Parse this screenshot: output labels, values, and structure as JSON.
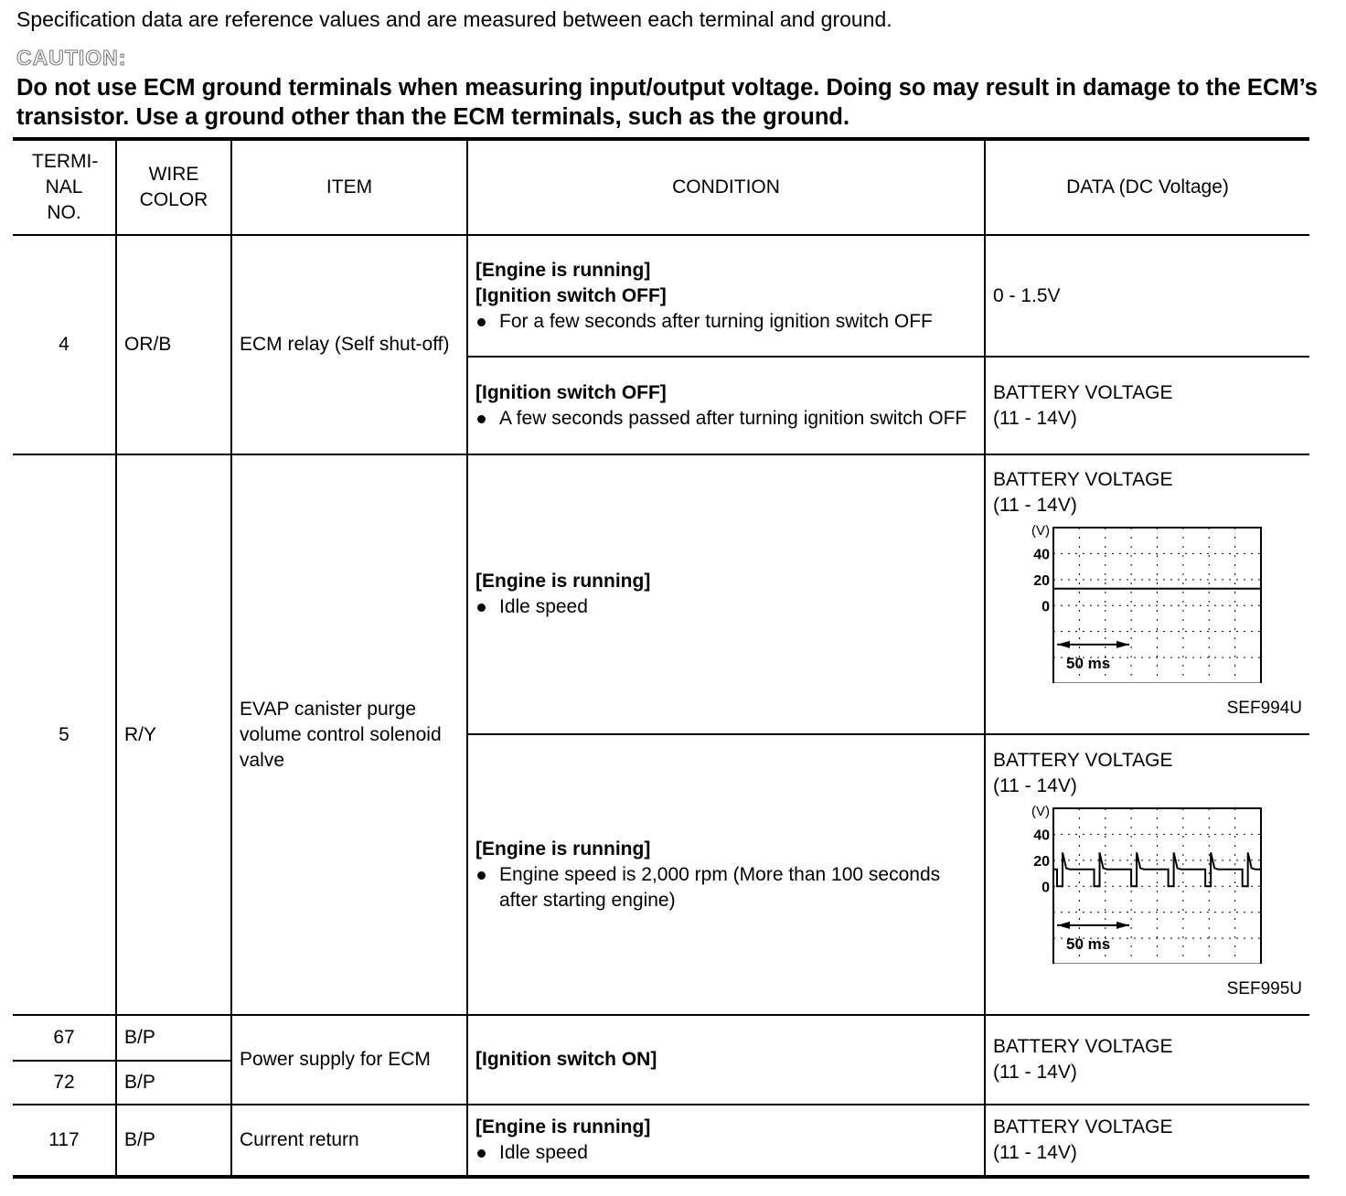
{
  "intro": "Specification data are reference values and are measured between each terminal and ground.",
  "caution_label": "CAUTION:",
  "caution_text": "Do not use ECM ground terminals when measuring input/output voltage. Doing so may result in damage to the ECM’s transistor. Use a ground other than the ECM terminals, such as the ground.",
  "headers": {
    "terminal": "TERMI-NAL NO.",
    "wire": "WIRE COLOR",
    "item": "ITEM",
    "condition": "CONDITION",
    "data": "DATA (DC Voltage)"
  },
  "rows": {
    "r4": {
      "terminal": "4",
      "wire": "OR/B",
      "item": "ECM relay (Self shut-off)",
      "c1": {
        "l1": "[Engine is running]",
        "l2": "[Ignition switch OFF]",
        "b": "For a few seconds after turning ignition switch OFF",
        "data": "0 - 1.5V"
      },
      "c2": {
        "l1": "[Ignition switch OFF]",
        "b": "A few seconds passed after turning ignition switch OFF",
        "d1": "BATTERY VOLTAGE",
        "d2": "(11 - 14V)"
      }
    },
    "r5": {
      "terminal": "5",
      "wire": "R/Y",
      "item": "EVAP canister purge volume control solenoid valve",
      "c1": {
        "l1": "[Engine is running]",
        "b": "Idle speed",
        "d1": "BATTERY VOLTAGE",
        "d2": "(11 - 14V)",
        "fig": "SEF994U"
      },
      "c2": {
        "l1": "[Engine is running]",
        "b": "Engine speed is 2,000 rpm (More than 100 seconds after starting engine)",
        "d1": "BATTERY VOLTAGE",
        "d2": "(11 - 14V)",
        "fig": "SEF995U"
      }
    },
    "r67": {
      "terminal": "67",
      "wire": "B/P",
      "item": "Power supply for ECM",
      "cond": "[Ignition switch ON]",
      "d1": "BATTERY VOLTAGE",
      "d2": "(11 - 14V)"
    },
    "r72": {
      "terminal": "72",
      "wire": "B/P"
    },
    "r117": {
      "terminal": "117",
      "wire": "B/P",
      "item": "Current return",
      "l1": "[Engine is running]",
      "b": "Idle speed",
      "d1": "BATTERY VOLTAGE",
      "d2": "(11 - 14V)"
    }
  },
  "scope": {
    "unit": "(V)",
    "ticks": [
      "40",
      "20",
      "0"
    ],
    "time": "50 ms",
    "waveforms": {
      "idle": "flat",
      "rpm2000": "pulsed"
    }
  }
}
